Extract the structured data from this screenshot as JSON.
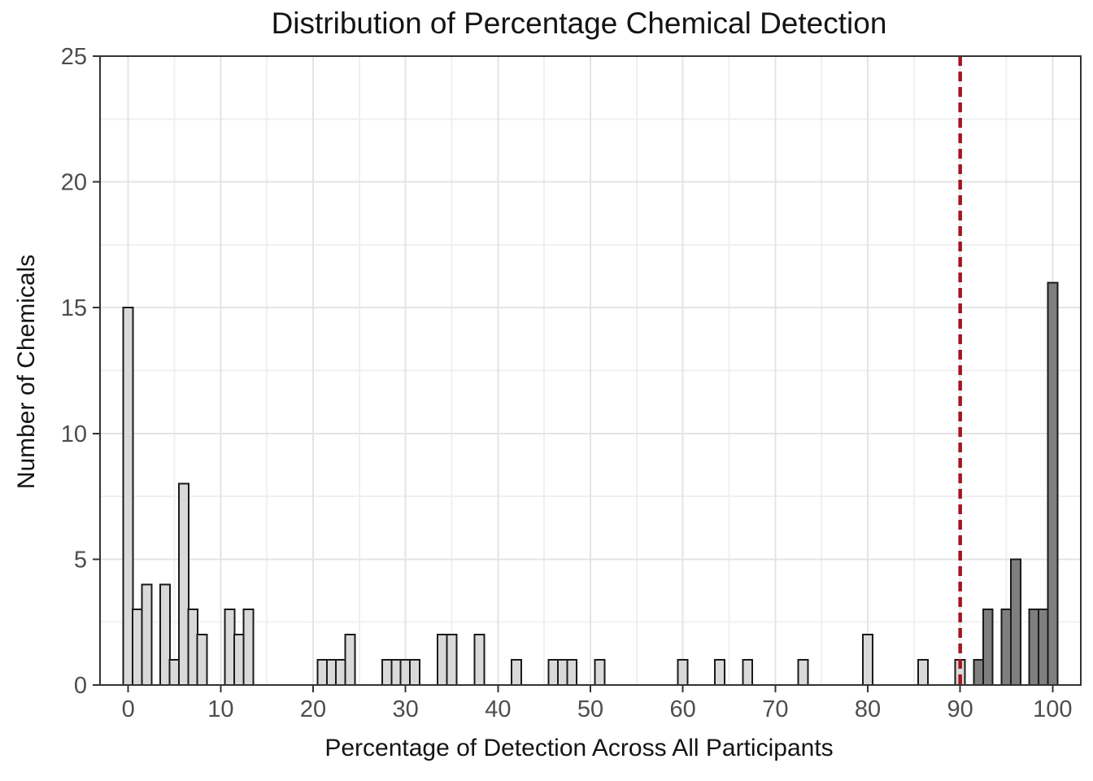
{
  "chart_data": {
    "type": "bar",
    "subtype": "histogram",
    "title": "Distribution of Percentage Chemical Detection",
    "xlabel": "Percentage of Detection Across All Participants",
    "ylabel": "Number of Chemicals",
    "xlim": [
      -3.05,
      103.05
    ],
    "ylim": [
      0,
      25
    ],
    "x_ticks": [
      0,
      10,
      20,
      30,
      40,
      50,
      60,
      70,
      80,
      90,
      100
    ],
    "y_ticks": [
      0,
      5,
      10,
      15,
      20,
      25
    ],
    "grid": {
      "on": true,
      "minor_x": [
        5,
        15,
        25,
        35,
        45,
        55,
        65,
        75,
        85,
        95
      ],
      "minor_y": [
        2.5,
        7.5,
        12.5,
        17.5,
        22.5
      ]
    },
    "bin_width": 1.05,
    "legend": "none",
    "series": [
      {
        "name": "detection-below-90",
        "fill": "#d9d9d9",
        "bars": [
          [
            0,
            15
          ],
          [
            1,
            3
          ],
          [
            2,
            4
          ],
          [
            4,
            4
          ],
          [
            5,
            1
          ],
          [
            6,
            8
          ],
          [
            7,
            3
          ],
          [
            8,
            2
          ],
          [
            11,
            3
          ],
          [
            12,
            2
          ],
          [
            13,
            3
          ],
          [
            21,
            1
          ],
          [
            22,
            1
          ],
          [
            23,
            1
          ],
          [
            24,
            2
          ],
          [
            28,
            1
          ],
          [
            29,
            1
          ],
          [
            30,
            1
          ],
          [
            31,
            1
          ],
          [
            34,
            2
          ],
          [
            35,
            2
          ],
          [
            38,
            2
          ],
          [
            42,
            1
          ],
          [
            46,
            1
          ],
          [
            47,
            1
          ],
          [
            48,
            1
          ],
          [
            51,
            1
          ],
          [
            60,
            1
          ],
          [
            64,
            1
          ],
          [
            67,
            1
          ],
          [
            73,
            1
          ],
          [
            80,
            2
          ],
          [
            86,
            1
          ],
          [
            90,
            1
          ]
        ]
      },
      {
        "name": "detection-above-90",
        "fill": "#7f7f7f",
        "bars": [
          [
            92,
            1
          ],
          [
            93,
            3
          ],
          [
            95,
            3
          ],
          [
            96,
            5
          ],
          [
            98,
            3
          ],
          [
            99,
            3
          ],
          [
            100,
            16
          ]
        ]
      }
    ],
    "threshold_line": {
      "x": 90,
      "style": "dashed",
      "color": "#a21621"
    },
    "colors": {
      "bar_stroke": "#1a1a1a",
      "panel_border": "#333333",
      "tick_mark": "#333333",
      "tick_label": "#4d4d4d",
      "grid_major": "#e4e4e4",
      "grid_minor": "#f0f0f0",
      "title_text": "#141414"
    }
  }
}
